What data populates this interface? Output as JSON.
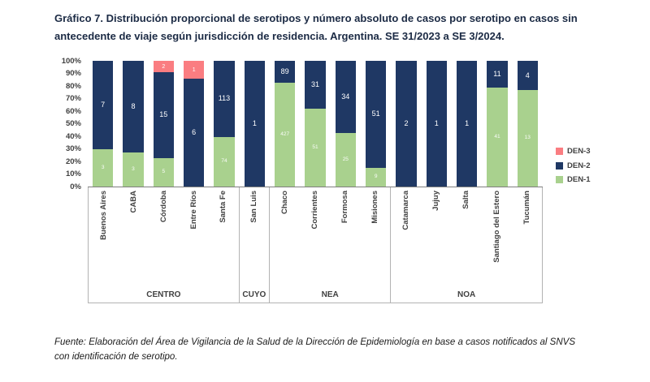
{
  "title": "Gráfico 7. Distribución proporcional de serotipos y número absoluto de casos por serotipo en casos sin antecedente de viaje según jurisdicción de residencia. Argentina. SE 31/2023 a SE 3/2024.",
  "source": "Fuente: Elaboración del Área de Vigilancia de la Salud de la Dirección de Epidemiología en base a casos notificados al SNVS con identificación de serotipo.",
  "chart_data": {
    "type": "bar",
    "subtype": "stacked-100-percent",
    "title": "",
    "xlabel": "",
    "ylabel": "",
    "ylim": [
      0,
      100
    ],
    "yticks": [
      "0%",
      "10%",
      "20%",
      "30%",
      "40%",
      "50%",
      "60%",
      "70%",
      "80%",
      "90%",
      "100%"
    ],
    "grid": false,
    "legend_position": "right",
    "groups": [
      {
        "name": "CENTRO",
        "categories": [
          "Buenos Aires",
          "CABA",
          "Córdoba",
          "Entre Ríos",
          "Santa Fe"
        ]
      },
      {
        "name": "CUYO",
        "categories": [
          "San Luis"
        ]
      },
      {
        "name": "NEA",
        "categories": [
          "Chaco",
          "Corrientes",
          "Formosa",
          "Misiones"
        ]
      },
      {
        "name": "NOA",
        "categories": [
          "Catamarca",
          "Jujuy",
          "Salta",
          "Santiago del Estero",
          "Tucumán"
        ]
      }
    ],
    "categories": [
      "Buenos Aires",
      "CABA",
      "Córdoba",
      "Entre Ríos",
      "Santa Fe",
      "San Luis",
      "Chaco",
      "Corrientes",
      "Formosa",
      "Misiones",
      "Catamarca",
      "Jujuy",
      "Salta",
      "Santiago del Estero",
      "Tucumán"
    ],
    "series": [
      {
        "name": "DEN-1",
        "color": "#a9d18e",
        "values": [
          3,
          3,
          5,
          0,
          74,
          0,
          427,
          51,
          25,
          9,
          0,
          0,
          0,
          41,
          13
        ]
      },
      {
        "name": "DEN-2",
        "color": "#1f3864",
        "values": [
          7,
          8,
          15,
          6,
          113,
          1,
          89,
          31,
          34,
          51,
          2,
          1,
          1,
          11,
          4
        ]
      },
      {
        "name": "DEN-3",
        "color": "#fa7d81",
        "values": [
          0,
          0,
          2,
          1,
          0,
          0,
          0,
          0,
          0,
          0,
          0,
          0,
          0,
          0,
          0
        ]
      }
    ],
    "legend": [
      {
        "name": "DEN-3",
        "color": "#fa7d81"
      },
      {
        "name": "DEN-2",
        "color": "#1f3864"
      },
      {
        "name": "DEN-1",
        "color": "#a9d18e"
      }
    ]
  }
}
